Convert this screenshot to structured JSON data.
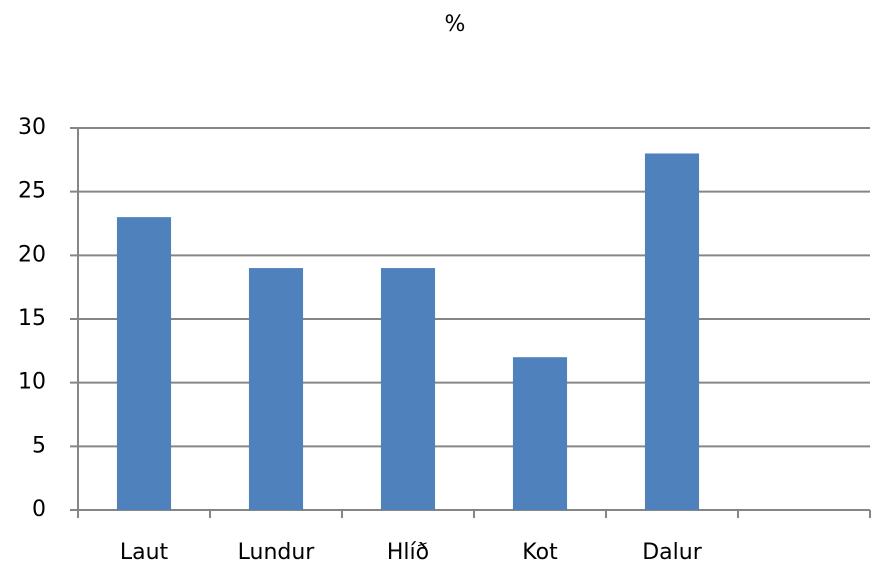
{
  "chart_data": {
    "type": "bar",
    "title": "%",
    "categories": [
      "Laut",
      "Lundur",
      "Hlíð",
      "Kot",
      "Dalur",
      null
    ],
    "values": [
      23,
      19,
      19,
      12,
      28,
      null
    ],
    "color": "#4f81bd",
    "ylim": [
      0,
      30
    ],
    "yticks": [
      0,
      5,
      10,
      15,
      20,
      25,
      30
    ],
    "grid": true
  }
}
